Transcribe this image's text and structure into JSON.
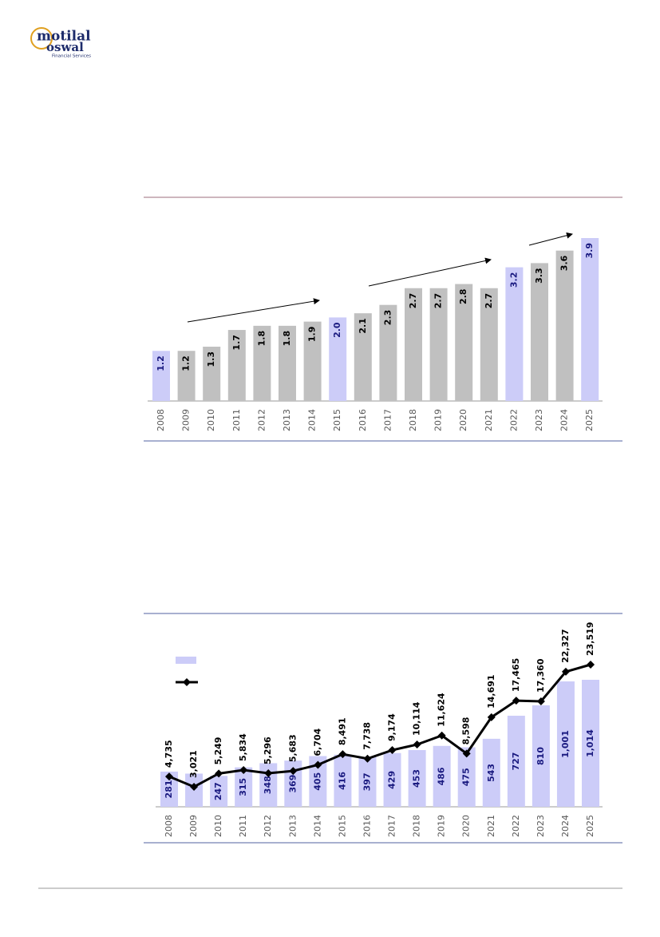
{
  "header": {
    "logo_line1": "motilal",
    "logo_line2": "oswal",
    "logo_tagline": "Financial Services"
  },
  "chart_data": [
    {
      "type": "bar",
      "categories": [
        "2008",
        "2009",
        "2010",
        "2011",
        "2012",
        "2013",
        "2014",
        "2015",
        "2016",
        "2017",
        "2018",
        "2019",
        "2020",
        "2021",
        "2022",
        "2023",
        "2024",
        "2025"
      ],
      "values": [
        1.2,
        1.2,
        1.3,
        1.7,
        1.8,
        1.8,
        1.9,
        2.0,
        2.1,
        2.3,
        2.7,
        2.7,
        2.8,
        2.7,
        3.2,
        3.3,
        3.6,
        3.9
      ],
      "value_labels": [
        "1.2",
        "1.2",
        "1.3",
        "1.7",
        "1.8",
        "1.8",
        "1.9",
        "2.0",
        "2.1",
        "2.3",
        "2.7",
        "2.7",
        "2.8",
        "2.7",
        "3.2",
        "3.3",
        "3.6",
        "3.9"
      ],
      "colors": [
        "#ccccf8",
        "#c0c0c0",
        "#c0c0c0",
        "#c0c0c0",
        "#c0c0c0",
        "#c0c0c0",
        "#c0c0c0",
        "#ccccf8",
        "#c0c0c0",
        "#c0c0c0",
        "#c0c0c0",
        "#c0c0c0",
        "#c0c0c0",
        "#c0c0c0",
        "#ccccf8",
        "#c0c0c0",
        "#c0c0c0",
        "#ccccf8"
      ]
    },
    {
      "type": "bar-line",
      "categories": [
        "2008",
        "2009",
        "2010",
        "2011",
        "2012",
        "2013",
        "2014",
        "2015",
        "2016",
        "2017",
        "2018",
        "2019",
        "2020",
        "2021",
        "2022",
        "2023",
        "2024",
        "2025"
      ],
      "series": [
        {
          "type": "bar",
          "color": "#ccccf8",
          "values": [
            281,
            265,
            247,
            315,
            348,
            369,
            405,
            416,
            397,
            429,
            453,
            486,
            475,
            543,
            727,
            810,
            1001,
            1014
          ],
          "value_labels": [
            "281",
            null,
            "247",
            "315",
            "348",
            "369",
            "405",
            "416",
            "397",
            "429",
            "453",
            "486",
            "475",
            "543",
            "727",
            "810",
            "1,001",
            "1,014"
          ]
        },
        {
          "type": "line",
          "color": "#000000",
          "axis": "y2",
          "values": [
            4735,
            3021,
            5249,
            5834,
            5296,
            5683,
            6704,
            8491,
            7738,
            9174,
            10114,
            11624,
            8598,
            14691,
            17465,
            17360,
            22327,
            23519
          ],
          "value_labels": [
            "4,735",
            "3,021",
            "5,249",
            "5,834",
            "5,296",
            "5,683",
            "6,704",
            "8,491",
            "7,738",
            "9,174",
            "10,114",
            "11,624",
            "8,598",
            "14,691",
            "17,465",
            "17,360",
            "22,327",
            "23,519"
          ]
        }
      ]
    }
  ]
}
